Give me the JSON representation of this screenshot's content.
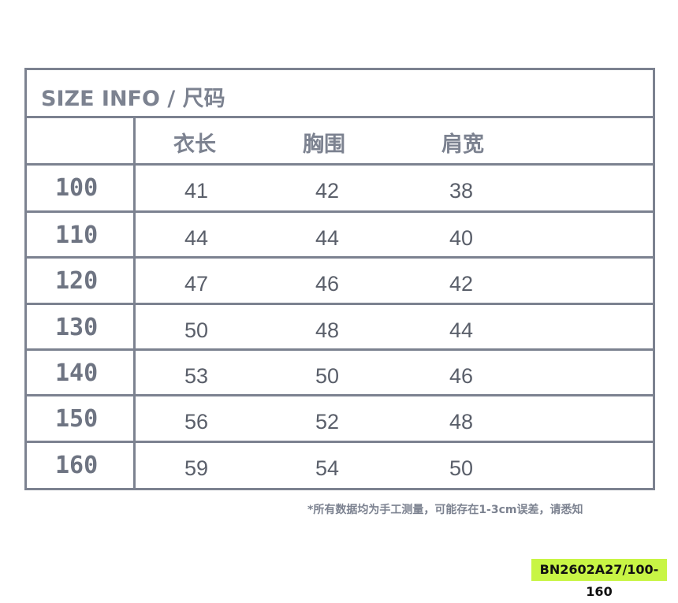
{
  "title": "SIZE INFO / 尺码",
  "headers": [
    "衣长",
    "胸围",
    "肩宽"
  ],
  "rows": [
    {
      "size": "100",
      "values": [
        "41",
        "42",
        "38"
      ]
    },
    {
      "size": "110",
      "values": [
        "44",
        "44",
        "40"
      ]
    },
    {
      "size": "120",
      "values": [
        "47",
        "46",
        "42"
      ]
    },
    {
      "size": "130",
      "values": [
        "50",
        "48",
        "44"
      ]
    },
    {
      "size": "140",
      "values": [
        "53",
        "50",
        "46"
      ]
    },
    {
      "size": "150",
      "values": [
        "56",
        "52",
        "48"
      ]
    },
    {
      "size": "160",
      "values": [
        "59",
        "54",
        "50"
      ]
    }
  ],
  "note": "*所有数据均为手工测量，可能存在1-3cm误差，请悉知",
  "code": "BN2602A27/100-160",
  "colors": {
    "line": "#7c8290",
    "code_bg": "#c8f545"
  }
}
